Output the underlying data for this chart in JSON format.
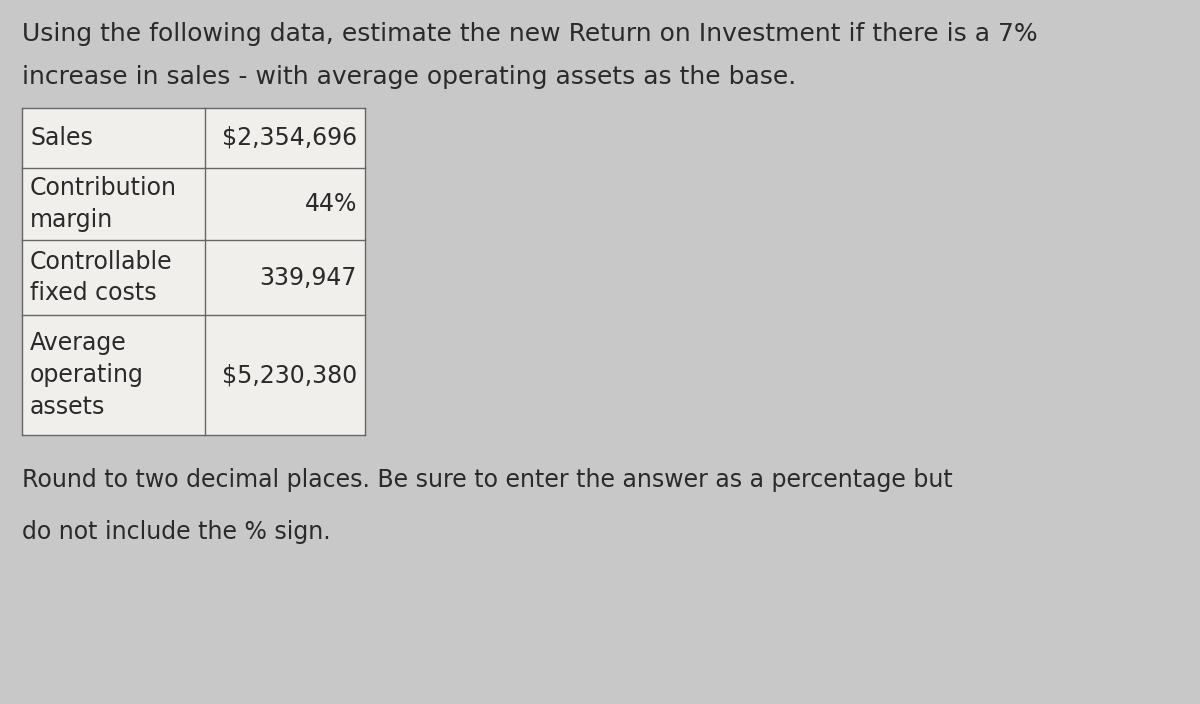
{
  "title_line1": "Using the following data, estimate the new Return on Investment if there is a 7%",
  "title_line2": "increase in sales - with average operating assets as the base.",
  "footer_line1": "Round to two decimal places. Be sure to enter the answer as a percentage but",
  "footer_line2": "do not include the % sign.",
  "table_rows": [
    {
      "label": "Sales",
      "value": "$2,354,696"
    },
    {
      "label": "Contribution\nmargin",
      "value": "44%"
    },
    {
      "label": "Controllable\nfixed costs",
      "value": "339,947"
    },
    {
      "label": "Average\noperating\nassets",
      "value": "$5,230,380"
    }
  ],
  "bg_color": "#c8c8c8",
  "text_color": "#2a2a2a",
  "cell_bg_color": "#f0efec",
  "border_color": "#666666",
  "title_fontsize": 18,
  "table_fontsize": 17,
  "footer_fontsize": 17
}
